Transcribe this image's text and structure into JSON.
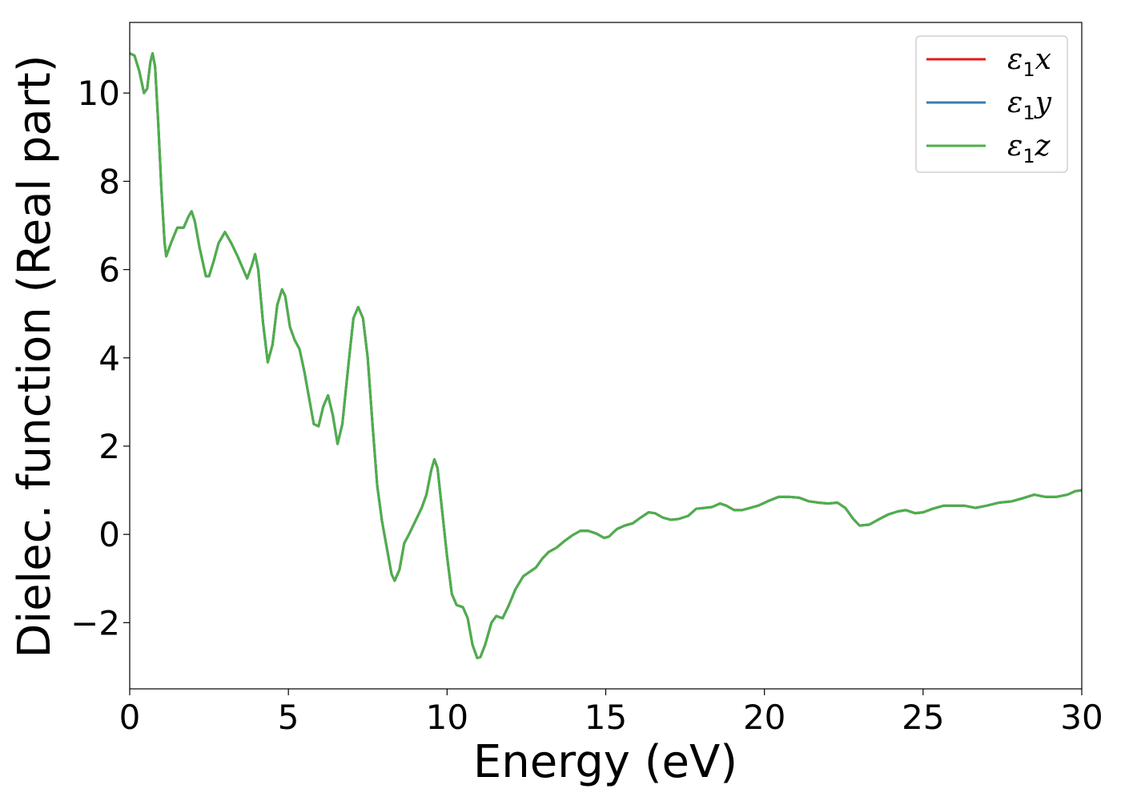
{
  "chart_data": {
    "type": "line",
    "title": "",
    "xlabel": "Energy (eV)",
    "ylabel": "Dielec. function (Real part)",
    "xlim": [
      0,
      30
    ],
    "ylim": [
      -3.5,
      11.6
    ],
    "xticks": [
      0,
      5,
      10,
      15,
      20,
      25,
      30
    ],
    "xtick_labels": [
      "0",
      "5",
      "10",
      "15",
      "20",
      "25",
      "30"
    ],
    "yticks": [
      -2,
      0,
      2,
      4,
      6,
      8,
      10
    ],
    "ytick_labels": [
      "−2",
      "0",
      "2",
      "4",
      "6",
      "8",
      "10"
    ],
    "grid": false,
    "legend_position": "top-right",
    "series": [
      {
        "name": "ε₁x",
        "symbol": "ε",
        "subscript": "1",
        "suffix": "x",
        "color": "#e41a1c",
        "points": "shared"
      },
      {
        "name": "ε₁y",
        "symbol": "ε",
        "subscript": "1",
        "suffix": "y",
        "color": "#377eb8",
        "points": "shared"
      },
      {
        "name": "ε₁z",
        "symbol": "ε",
        "subscript": "1",
        "suffix": "z",
        "color": "#4daf4a",
        "points": "shared"
      }
    ],
    "shared_points": [
      [
        0.0,
        10.9
      ],
      [
        0.15,
        10.85
      ],
      [
        0.3,
        10.5
      ],
      [
        0.45,
        10.0
      ],
      [
        0.55,
        10.1
      ],
      [
        0.65,
        10.7
      ],
      [
        0.72,
        10.9
      ],
      [
        0.8,
        10.6
      ],
      [
        0.9,
        9.3
      ],
      [
        1.0,
        7.8
      ],
      [
        1.1,
        6.6
      ],
      [
        1.15,
        6.3
      ],
      [
        1.3,
        6.6
      ],
      [
        1.5,
        6.95
      ],
      [
        1.7,
        6.95
      ],
      [
        1.85,
        7.2
      ],
      [
        1.95,
        7.32
      ],
      [
        2.05,
        7.1
      ],
      [
        2.2,
        6.5
      ],
      [
        2.4,
        5.85
      ],
      [
        2.5,
        5.85
      ],
      [
        2.65,
        6.2
      ],
      [
        2.8,
        6.6
      ],
      [
        3.0,
        6.85
      ],
      [
        3.2,
        6.6
      ],
      [
        3.4,
        6.3
      ],
      [
        3.55,
        6.05
      ],
      [
        3.7,
        5.8
      ],
      [
        3.85,
        6.1
      ],
      [
        3.95,
        6.35
      ],
      [
        4.05,
        6.0
      ],
      [
        4.2,
        4.8
      ],
      [
        4.35,
        3.9
      ],
      [
        4.5,
        4.3
      ],
      [
        4.65,
        5.2
      ],
      [
        4.8,
        5.55
      ],
      [
        4.9,
        5.4
      ],
      [
        5.05,
        4.7
      ],
      [
        5.2,
        4.4
      ],
      [
        5.35,
        4.2
      ],
      [
        5.5,
        3.7
      ],
      [
        5.65,
        3.1
      ],
      [
        5.8,
        2.5
      ],
      [
        5.95,
        2.45
      ],
      [
        6.1,
        2.9
      ],
      [
        6.25,
        3.15
      ],
      [
        6.4,
        2.7
      ],
      [
        6.55,
        2.05
      ],
      [
        6.7,
        2.5
      ],
      [
        6.9,
        3.9
      ],
      [
        7.05,
        4.9
      ],
      [
        7.2,
        5.15
      ],
      [
        7.35,
        4.9
      ],
      [
        7.5,
        4.0
      ],
      [
        7.65,
        2.5
      ],
      [
        7.8,
        1.1
      ],
      [
        7.95,
        0.3
      ],
      [
        8.1,
        -0.3
      ],
      [
        8.25,
        -0.9
      ],
      [
        8.35,
        -1.05
      ],
      [
        8.5,
        -0.8
      ],
      [
        8.65,
        -0.2
      ],
      [
        8.8,
        0.0
      ],
      [
        9.0,
        0.3
      ],
      [
        9.2,
        0.6
      ],
      [
        9.35,
        0.9
      ],
      [
        9.5,
        1.45
      ],
      [
        9.6,
        1.7
      ],
      [
        9.7,
        1.5
      ],
      [
        9.85,
        0.5
      ],
      [
        10.0,
        -0.5
      ],
      [
        10.15,
        -1.35
      ],
      [
        10.3,
        -1.6
      ],
      [
        10.5,
        -1.65
      ],
      [
        10.65,
        -1.9
      ],
      [
        10.8,
        -2.5
      ],
      [
        10.95,
        -2.8
      ],
      [
        11.05,
        -2.78
      ],
      [
        11.2,
        -2.5
      ],
      [
        11.4,
        -2.0
      ],
      [
        11.55,
        -1.85
      ],
      [
        11.75,
        -1.9
      ],
      [
        11.95,
        -1.6
      ],
      [
        12.15,
        -1.25
      ],
      [
        12.4,
        -0.95
      ],
      [
        12.6,
        -0.85
      ],
      [
        12.8,
        -0.75
      ],
      [
        13.0,
        -0.55
      ],
      [
        13.2,
        -0.4
      ],
      [
        13.45,
        -0.3
      ],
      [
        13.7,
        -0.15
      ],
      [
        13.95,
        -0.02
      ],
      [
        14.2,
        0.08
      ],
      [
        14.45,
        0.08
      ],
      [
        14.7,
        0.02
      ],
      [
        14.95,
        -0.08
      ],
      [
        15.1,
        -0.05
      ],
      [
        15.35,
        0.12
      ],
      [
        15.6,
        0.2
      ],
      [
        15.85,
        0.25
      ],
      [
        16.1,
        0.38
      ],
      [
        16.35,
        0.5
      ],
      [
        16.55,
        0.48
      ],
      [
        16.8,
        0.38
      ],
      [
        17.05,
        0.33
      ],
      [
        17.3,
        0.35
      ],
      [
        17.6,
        0.42
      ],
      [
        17.85,
        0.58
      ],
      [
        18.1,
        0.6
      ],
      [
        18.35,
        0.62
      ],
      [
        18.6,
        0.7
      ],
      [
        18.8,
        0.65
      ],
      [
        19.05,
        0.55
      ],
      [
        19.3,
        0.55
      ],
      [
        19.55,
        0.6
      ],
      [
        19.8,
        0.65
      ],
      [
        20.1,
        0.75
      ],
      [
        20.45,
        0.85
      ],
      [
        20.8,
        0.85
      ],
      [
        21.1,
        0.83
      ],
      [
        21.4,
        0.75
      ],
      [
        21.7,
        0.72
      ],
      [
        22.0,
        0.7
      ],
      [
        22.3,
        0.72
      ],
      [
        22.55,
        0.6
      ],
      [
        22.8,
        0.35
      ],
      [
        23.0,
        0.2
      ],
      [
        23.3,
        0.22
      ],
      [
        23.55,
        0.32
      ],
      [
        23.9,
        0.45
      ],
      [
        24.2,
        0.52
      ],
      [
        24.45,
        0.55
      ],
      [
        24.75,
        0.48
      ],
      [
        25.0,
        0.5
      ],
      [
        25.3,
        0.58
      ],
      [
        25.65,
        0.65
      ],
      [
        25.95,
        0.65
      ],
      [
        26.3,
        0.65
      ],
      [
        26.65,
        0.6
      ],
      [
        27.0,
        0.65
      ],
      [
        27.4,
        0.72
      ],
      [
        27.8,
        0.75
      ],
      [
        28.15,
        0.82
      ],
      [
        28.5,
        0.9
      ],
      [
        28.85,
        0.85
      ],
      [
        29.2,
        0.85
      ],
      [
        29.55,
        0.9
      ],
      [
        29.8,
        0.98
      ],
      [
        30.0,
        1.0
      ]
    ]
  }
}
